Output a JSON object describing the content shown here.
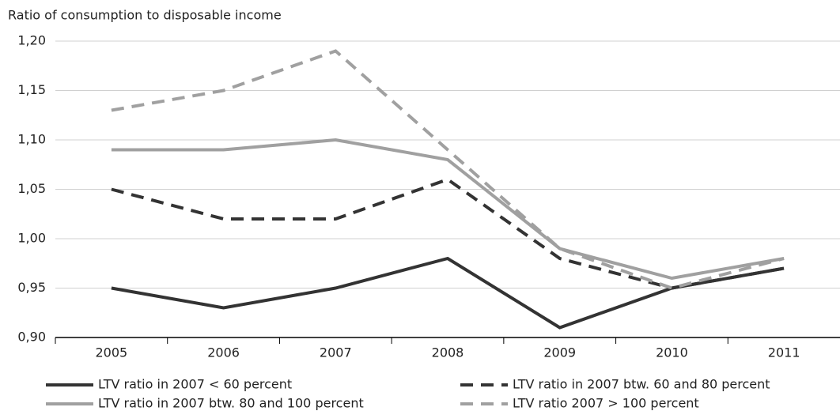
{
  "chart_data": {
    "type": "line",
    "y_label": "Ratio of consumption to disposable income",
    "categories": [
      "2005",
      "2006",
      "2007",
      "2008",
      "2009",
      "2010",
      "2011"
    ],
    "series": [
      {
        "name": "LTV ratio in 2007 < 60 percent",
        "color": "#333333",
        "dashed": false,
        "values": [
          0.95,
          0.93,
          0.95,
          0.98,
          0.91,
          0.95,
          0.97
        ]
      },
      {
        "name": "LTV ratio in 2007 btw. 60 and 80 percent",
        "color": "#333333",
        "dashed": true,
        "values": [
          1.05,
          1.02,
          1.02,
          1.06,
          0.98,
          0.95,
          0.97
        ]
      },
      {
        "name": "LTV ratio in 2007 btw. 80 and 100 percent",
        "color": "#a0a0a0",
        "dashed": false,
        "values": [
          1.09,
          1.09,
          1.1,
          1.08,
          0.99,
          0.96,
          0.98
        ]
      },
      {
        "name": "LTV ratio 2007 > 100 percent",
        "color": "#a0a0a0",
        "dashed": true,
        "values": [
          1.13,
          1.15,
          1.19,
          1.09,
          0.99,
          0.95,
          0.98
        ]
      }
    ],
    "ylim": [
      0.9,
      1.2
    ],
    "yticks": [
      {
        "value": 0.9,
        "label": "0,90"
      },
      {
        "value": 0.95,
        "label": "0,95"
      },
      {
        "value": 1.0,
        "label": "1,00"
      },
      {
        "value": 1.05,
        "label": "1,05"
      },
      {
        "value": 1.1,
        "label": "1,10"
      },
      {
        "value": 1.15,
        "label": "1,15"
      },
      {
        "value": 1.2,
        "label": "1,20"
      }
    ],
    "grid": true
  }
}
